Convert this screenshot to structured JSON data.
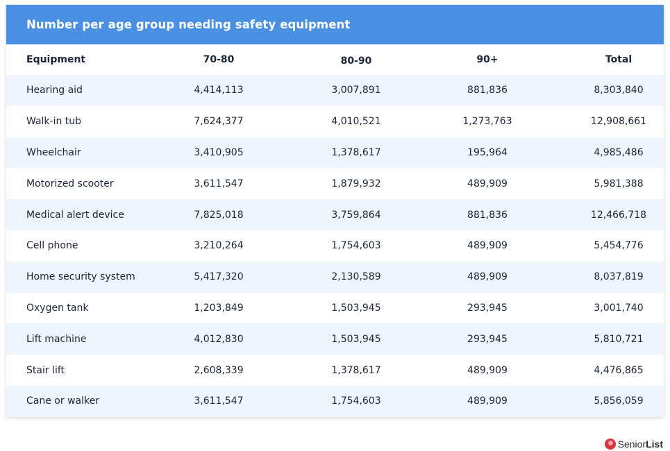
{
  "title": "Number per age group needing safety equipment",
  "columns": [
    "Equipment",
    "70-80",
    "80-90",
    "90+",
    "Total"
  ],
  "rows": [
    [
      "Hearing aid",
      "4,414,113",
      "3,007,891",
      "881,836",
      "8,303,840"
    ],
    [
      "Walk-in tub",
      "7,624,377",
      "4,010,521",
      "1,273,763",
      "12,908,661"
    ],
    [
      "Wheelchair",
      "3,410,905",
      "1,378,617",
      "195,964",
      "4,985,486"
    ],
    [
      "Motorized scooter",
      "3,611,547",
      "1,879,932",
      "489,909",
      "5,981,388"
    ],
    [
      "Medical alert device",
      "7,825,018",
      "3,759,864",
      "881,836",
      "12,466,718"
    ],
    [
      "Cell phone",
      "3,210,264",
      "1,754,603",
      "489,909",
      "5,454,776"
    ],
    [
      "Home security system",
      "5,417,320",
      "2,130,589",
      "489,909",
      "8,037,819"
    ],
    [
      "Oxygen tank",
      "1,203,849",
      "1,503,945",
      "293,945",
      "3,001,740"
    ],
    [
      "Lift machine",
      "4,012,830",
      "1,503,945",
      "293,945",
      "5,810,721"
    ],
    [
      "Stair lift",
      "2,608,339",
      "1,378,617",
      "489,909",
      "4,476,865"
    ],
    [
      "Cane or walker",
      "3,611,547",
      "1,754,603",
      "489,909",
      "5,856,059"
    ]
  ],
  "logo": {
    "prefix": "Senior",
    "suffix": "List",
    "icon": "seniorlist-logo-icon"
  },
  "colors": {
    "header": "#4a90e2",
    "row_alt": "#eef5fd",
    "logo": "#d8343d"
  }
}
